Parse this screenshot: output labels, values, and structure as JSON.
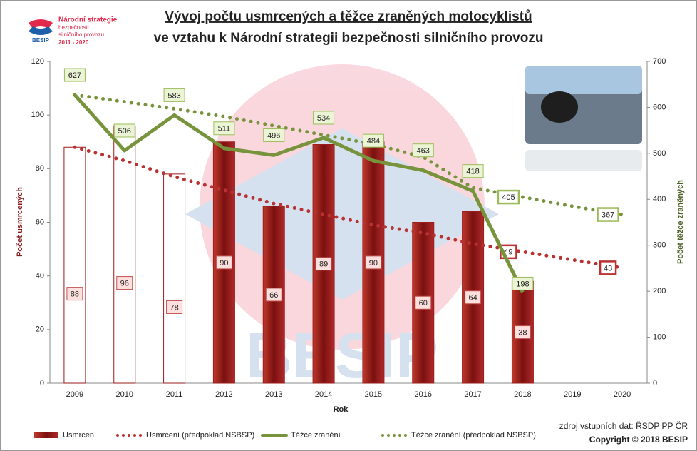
{
  "chart_data": {
    "type": "combo",
    "title": [
      "Vývoj počtu usmrcených a těžce zraněných motocyklistů",
      "ve vztahu k Národní strategii bezpečnosti silničního provozu"
    ],
    "logo": [
      "Národní strategie",
      "bezpečnosti",
      "silničního provozu",
      "2011 - 2020",
      "BESIP"
    ],
    "categories": [
      "2009",
      "2010",
      "2011",
      "2012",
      "2013",
      "2014",
      "2015",
      "2016",
      "2017",
      "2018",
      "2019",
      "2020"
    ],
    "x_label": "Rok",
    "y_label": "Počet usmrcených",
    "y2_label": "Počet těžce zraněných",
    "ylim": [
      0,
      120
    ],
    "yticks": [
      0,
      20,
      40,
      60,
      80,
      100,
      120
    ],
    "y2lim": [
      0,
      700
    ],
    "y2ticks": [
      0,
      100,
      200,
      300,
      400,
      500,
      600,
      700
    ],
    "series": [
      {
        "name": "Usmrcení",
        "kind": "bar",
        "color": "#9e1b1b",
        "colors": [
          "#ffffff",
          "#ffffff",
          "#ffffff",
          "#9e1b1b",
          "#9e1b1b",
          "#9e1b1b",
          "#9e1b1b",
          "#9e1b1b",
          "#9e1b1b",
          "#9e1b1b",
          null,
          null
        ],
        "values": [
          88,
          96,
          78,
          90,
          66,
          89,
          90,
          60,
          64,
          38,
          null,
          null
        ]
      },
      {
        "name": "Usmrcení (předpoklad NSBSP)",
        "kind": "dotted",
        "color": "#b83232",
        "values": [
          88,
          83,
          77,
          72,
          67,
          63,
          59,
          56,
          52,
          49,
          46,
          43
        ],
        "value_labels": [
          null,
          null,
          null,
          null,
          null,
          null,
          null,
          null,
          null,
          "49",
          null,
          "43"
        ]
      },
      {
        "name": "Těžce zranění",
        "kind": "line",
        "axis": "y2",
        "color": "#77933c",
        "values": [
          627,
          506,
          583,
          511,
          496,
          534,
          484,
          463,
          418,
          198,
          null,
          null
        ]
      },
      {
        "name": "Těžce zranění (předpoklad NSBSP)",
        "kind": "dotted",
        "axis": "y2",
        "color": "#77933c",
        "values": [
          627,
          612,
          597,
          580,
          560,
          540,
          520,
          492,
          425,
          405,
          385,
          367
        ],
        "value_labels": [
          null,
          null,
          null,
          null,
          null,
          null,
          null,
          null,
          null,
          "405",
          null,
          "367"
        ]
      }
    ],
    "source": "zdroj vstupních dat: ŘSDP PP ČR",
    "copyright": "Copyright © 2018  BESIP"
  }
}
